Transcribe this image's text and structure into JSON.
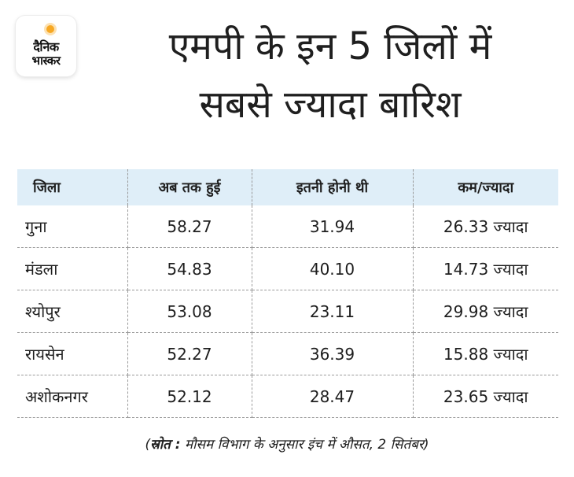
{
  "logo": {
    "line1": "दैनिक",
    "line2": "भास्कर",
    "accent_color": "#f7a823"
  },
  "title": {
    "line1": "एमपी के इन 5 जिलों में",
    "line2": "सबसे ज्यादा बारिश"
  },
  "table": {
    "header_bg": "#dfeef8",
    "columns": [
      "जिला",
      "अब तक हुई",
      "इतनी होनी थी",
      "कम/ज्यादा"
    ],
    "rows": [
      [
        "गुना",
        "58.27",
        "31.94",
        "26.33 ज्यादा"
      ],
      [
        "मंडला",
        "54.83",
        "40.10",
        "14.73 ज्यादा"
      ],
      [
        "श्योपुर",
        "53.08",
        "23.11",
        "29.98 ज्यादा"
      ],
      [
        "रायसेन",
        "52.27",
        "36.39",
        "15.88 ज्यादा"
      ],
      [
        "अशोकनगर",
        "52.12",
        "28.47",
        "23.65 ज्यादा"
      ]
    ]
  },
  "source": {
    "open": "(",
    "label": "स्रोत :",
    "text": " मौसम विभाग के अनुसार इंच में औसत, 2 सितंबर)"
  }
}
